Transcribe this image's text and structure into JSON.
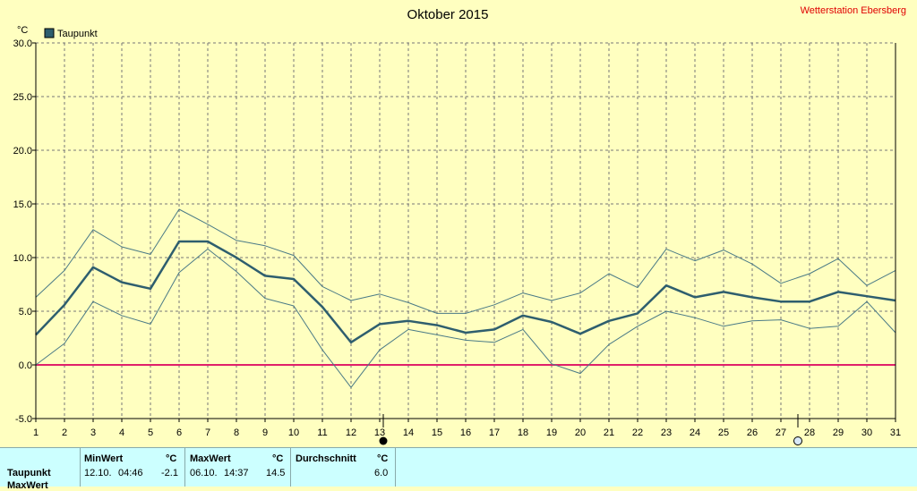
{
  "chart_data": {
    "type": "line",
    "title": "Oktober 2015",
    "station": "Wetterstation Ebersberg",
    "ylabel": "°C",
    "ylim": [
      -5,
      30
    ],
    "yticks": [
      "30.0",
      "25.0",
      "20.0",
      "15.0",
      "10.0",
      "5.0",
      "0.0",
      "-5.0"
    ],
    "x": [
      1,
      2,
      3,
      4,
      5,
      6,
      7,
      8,
      9,
      10,
      11,
      12,
      13,
      14,
      15,
      16,
      17,
      18,
      19,
      20,
      21,
      22,
      23,
      24,
      25,
      26,
      27,
      28,
      29,
      30,
      31
    ],
    "legend": "Taupunkt",
    "grid": true,
    "reference_line": 0,
    "series": [
      {
        "name": "Taupunkt",
        "color": "#2e5e6e",
        "values": [
          2.8,
          5.6,
          9.1,
          7.7,
          7.1,
          11.5,
          11.5,
          10.0,
          8.3,
          8.0,
          5.4,
          2.1,
          3.8,
          4.1,
          3.7,
          3.0,
          3.3,
          4.6,
          4.0,
          2.9,
          4.1,
          4.8,
          7.4,
          6.3,
          6.8,
          6.3,
          5.9,
          5.9,
          6.8,
          6.4,
          6.0
        ]
      },
      {
        "color": "#4a7a86",
        "values": [
          6.3,
          8.8,
          12.6,
          11.0,
          10.3,
          14.5,
          13.1,
          11.6,
          11.1,
          10.2,
          7.3,
          6.0,
          6.6,
          5.8,
          4.8,
          4.8,
          5.6,
          6.7,
          6.0,
          6.7,
          8.5,
          7.2,
          10.8,
          9.7,
          10.7,
          9.4,
          7.6,
          8.5,
          9.9,
          7.4,
          8.8
        ]
      },
      {
        "color": "#4a7a86",
        "values": [
          0.0,
          2.0,
          5.9,
          4.6,
          3.8,
          8.6,
          10.8,
          8.7,
          6.2,
          5.5,
          1.4,
          -2.1,
          1.4,
          3.3,
          2.8,
          2.3,
          2.1,
          3.3,
          0.1,
          -0.8,
          1.9,
          3.6,
          5.0,
          4.4,
          3.6,
          4.1,
          4.2,
          3.4,
          3.6,
          5.9,
          3.0
        ]
      }
    ],
    "colors": {
      "background": "#ffffc0",
      "zero_line": "#e0206a",
      "grid": "#777777",
      "table_bg": "#ccffff",
      "station_text": "#e00000"
    }
  },
  "table": {
    "row_label": "Taupunkt",
    "row_label_2": "MaxWert",
    "min_header": "MinWert",
    "max_header": "MaxWert",
    "avg_header": "Durchschnitt",
    "unit": "°C",
    "min_date": "12.10.",
    "min_time": "04:46",
    "min_value": "-2.1",
    "max_date": "06.10.",
    "max_time": "14:37",
    "max_value": "14.5",
    "avg_value": "6.0"
  }
}
